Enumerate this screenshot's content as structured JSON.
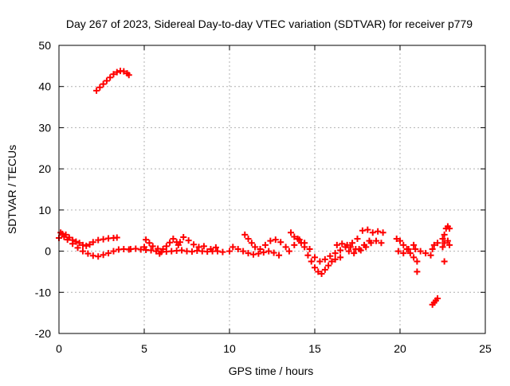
{
  "chart_data": {
    "type": "scatter",
    "title": "Day 267 of 2023, Sidereal Day-to-day VTEC variation (SDTVAR) for receiver p779",
    "xlabel": "GPS time / hours",
    "ylabel": "SDTVAR / TECUs",
    "xlim": [
      0,
      25
    ],
    "ylim": [
      -20,
      50
    ],
    "xticks": [
      0,
      5,
      10,
      15,
      20,
      25
    ],
    "yticks": [
      -20,
      -10,
      0,
      10,
      20,
      30,
      40,
      50
    ],
    "grid": true,
    "legend": "none",
    "marker": "+",
    "color": "#ff0000",
    "series": [
      {
        "name": "p779",
        "points": [
          [
            0.0,
            3.2
          ],
          [
            0.2,
            4.2
          ],
          [
            0.4,
            4.0
          ],
          [
            0.6,
            3.3
          ],
          [
            0.8,
            2.7
          ],
          [
            1.0,
            2.3
          ],
          [
            1.2,
            2.0
          ],
          [
            1.4,
            1.5
          ],
          [
            1.6,
            1.3
          ],
          [
            1.8,
            1.6
          ],
          [
            2.0,
            2.2
          ],
          [
            2.3,
            2.7
          ],
          [
            2.6,
            2.9
          ],
          [
            2.9,
            3.1
          ],
          [
            3.2,
            3.2
          ],
          [
            3.4,
            3.3
          ],
          [
            0.1,
            4.5
          ],
          [
            0.3,
            3.5
          ],
          [
            0.5,
            2.8
          ],
          [
            0.8,
            1.8
          ],
          [
            1.1,
            0.8
          ],
          [
            1.4,
            0.0
          ],
          [
            1.7,
            -0.6
          ],
          [
            2.0,
            -1.1
          ],
          [
            2.3,
            -1.3
          ],
          [
            2.6,
            -0.9
          ],
          [
            2.9,
            -0.5
          ],
          [
            3.2,
            0.0
          ],
          [
            3.5,
            0.4
          ],
          [
            3.8,
            0.5
          ],
          [
            4.1,
            0.4
          ],
          [
            2.2,
            39.0
          ],
          [
            2.4,
            39.8
          ],
          [
            2.6,
            40.6
          ],
          [
            2.8,
            41.4
          ],
          [
            3.0,
            42.2
          ],
          [
            3.2,
            43.0
          ],
          [
            3.4,
            43.5
          ],
          [
            3.6,
            43.8
          ],
          [
            3.8,
            43.7
          ],
          [
            4.0,
            43.2
          ],
          [
            4.1,
            42.8
          ],
          [
            4.2,
            0.5
          ],
          [
            4.5,
            0.6
          ],
          [
            4.8,
            0.4
          ],
          [
            5.1,
            0.3
          ],
          [
            5.4,
            0.2
          ],
          [
            5.7,
            0.0
          ],
          [
            6.0,
            -0.2
          ],
          [
            6.3,
            -0.1
          ],
          [
            6.6,
            0.0
          ],
          [
            6.9,
            0.1
          ],
          [
            7.2,
            0.2
          ],
          [
            7.5,
            0.0
          ],
          [
            7.8,
            -0.1
          ],
          [
            8.1,
            0.1
          ],
          [
            8.4,
            0.0
          ],
          [
            8.7,
            -0.1
          ],
          [
            9.0,
            0.0
          ],
          [
            9.3,
            0.0
          ],
          [
            9.6,
            -0.2
          ],
          [
            5.0,
            1.0
          ],
          [
            5.1,
            2.8
          ],
          [
            5.3,
            2.0
          ],
          [
            5.5,
            1.2
          ],
          [
            5.8,
            0.6
          ],
          [
            5.9,
            -0.6
          ],
          [
            6.1,
            0.5
          ],
          [
            6.3,
            1.2
          ],
          [
            6.5,
            2.1
          ],
          [
            6.7,
            3.0
          ],
          [
            6.9,
            2.2
          ],
          [
            7.0,
            1.5
          ],
          [
            7.1,
            2.2
          ],
          [
            7.3,
            3.4
          ],
          [
            7.6,
            2.6
          ],
          [
            7.9,
            1.6
          ],
          [
            8.2,
            1.0
          ],
          [
            8.5,
            1.2
          ],
          [
            8.9,
            0.5
          ],
          [
            9.2,
            0.9
          ],
          [
            10.0,
            0.0
          ],
          [
            10.2,
            1.0
          ],
          [
            10.5,
            0.5
          ],
          [
            10.8,
            0.0
          ],
          [
            11.1,
            -0.5
          ],
          [
            11.4,
            -0.8
          ],
          [
            11.7,
            -0.6
          ],
          [
            12.0,
            -0.3
          ],
          [
            12.3,
            0.0
          ],
          [
            12.6,
            -0.4
          ],
          [
            12.9,
            -1.0
          ],
          [
            10.9,
            4.0
          ],
          [
            11.1,
            3.0
          ],
          [
            11.3,
            2.0
          ],
          [
            11.5,
            1.0
          ],
          [
            11.8,
            0.5
          ],
          [
            12.1,
            1.5
          ],
          [
            12.4,
            2.5
          ],
          [
            12.7,
            2.8
          ],
          [
            13.0,
            2.2
          ],
          [
            13.3,
            1.0
          ],
          [
            13.5,
            0.0
          ],
          [
            13.8,
            1.5
          ],
          [
            14.0,
            3.0
          ],
          [
            14.2,
            2.0
          ],
          [
            14.4,
            1.0
          ],
          [
            14.6,
            -1.0
          ],
          [
            14.8,
            -2.5
          ],
          [
            15.0,
            -4.0
          ],
          [
            15.2,
            -5.0
          ],
          [
            15.4,
            -5.5
          ],
          [
            15.6,
            -4.5
          ],
          [
            15.8,
            -3.5
          ],
          [
            16.0,
            -2.5
          ],
          [
            16.2,
            -2.0
          ],
          [
            16.5,
            -1.5
          ],
          [
            13.6,
            4.5
          ],
          [
            13.8,
            3.5
          ],
          [
            14.1,
            2.8
          ],
          [
            14.4,
            2.0
          ],
          [
            14.7,
            0.5
          ],
          [
            15.0,
            -1.5
          ],
          [
            15.3,
            -2.5
          ],
          [
            15.6,
            -2.0
          ],
          [
            15.9,
            -1.2
          ],
          [
            16.2,
            -0.5
          ],
          [
            16.5,
            0.2
          ],
          [
            16.8,
            1.0
          ],
          [
            17.1,
            1.0
          ],
          [
            17.4,
            0.5
          ],
          [
            17.7,
            0.2
          ],
          [
            18.0,
            1.0
          ],
          [
            18.3,
            2.0
          ],
          [
            18.6,
            2.5
          ],
          [
            18.9,
            2.0
          ],
          [
            16.3,
            1.5
          ],
          [
            16.6,
            1.8
          ],
          [
            16.9,
            1.5
          ],
          [
            17.2,
            2.0
          ],
          [
            17.5,
            3.0
          ],
          [
            17.8,
            5.0
          ],
          [
            18.1,
            5.2
          ],
          [
            18.4,
            4.5
          ],
          [
            18.7,
            4.8
          ],
          [
            19.0,
            4.5
          ],
          [
            17.0,
            0.0
          ],
          [
            17.3,
            -0.5
          ],
          [
            17.6,
            0.5
          ],
          [
            17.9,
            1.5
          ],
          [
            18.2,
            2.5
          ],
          [
            19.8,
            3.0
          ],
          [
            20.0,
            2.5
          ],
          [
            20.2,
            1.5
          ],
          [
            20.4,
            0.5
          ],
          [
            20.6,
            -0.5
          ],
          [
            20.8,
            -1.5
          ],
          [
            21.0,
            -2.5
          ],
          [
            19.9,
            0.0
          ],
          [
            20.2,
            -0.5
          ],
          [
            20.5,
            0.5
          ],
          [
            20.8,
            1.5
          ],
          [
            20.9,
            0.5
          ],
          [
            21.2,
            0.0
          ],
          [
            21.5,
            -0.5
          ],
          [
            21.8,
            -1.0
          ],
          [
            21.9,
            0.5
          ],
          [
            22.0,
            1.5
          ],
          [
            22.2,
            2.0
          ],
          [
            21.0,
            -5.0
          ],
          [
            21.9,
            -13.0
          ],
          [
            22.0,
            -12.5
          ],
          [
            22.1,
            -12.0
          ],
          [
            22.2,
            -11.5
          ],
          [
            22.6,
            -2.5
          ],
          [
            22.5,
            3.0
          ],
          [
            22.6,
            4.0
          ],
          [
            22.7,
            5.5
          ],
          [
            22.8,
            6.0
          ],
          [
            22.9,
            5.5
          ],
          [
            22.5,
            1.0
          ],
          [
            22.6,
            2.0
          ],
          [
            22.8,
            2.5
          ],
          [
            22.9,
            1.5
          ]
        ]
      }
    ]
  }
}
